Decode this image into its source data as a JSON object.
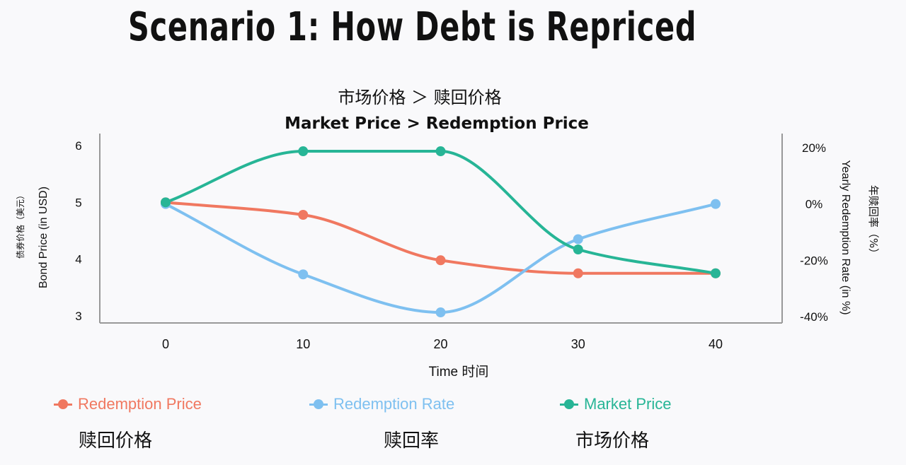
{
  "slide_title": "Scenario 1: How Debt is Repriced",
  "chart_data": {
    "type": "line",
    "title_cn": "市场价格 ＞ 赎回价格",
    "title": "Market Price > Redemption Price",
    "xlabel": "Time 时间",
    "ylabel_left": "Bond Price (in USD)",
    "ylabel_left_cn": "债券价格（美元）",
    "ylabel_right": "Yearly Redemption Rate (in %)",
    "ylabel_right_cn": "年赎回率（%）",
    "x": [
      0,
      10,
      20,
      30,
      40
    ],
    "x_ticks": [
      "0",
      "10",
      "20",
      "30",
      "40"
    ],
    "y_left_ticks": [
      "6",
      "5",
      "4",
      "3"
    ],
    "y_left_lim": [
      3,
      6
    ],
    "y_right_ticks": [
      "20%",
      "0%",
      "-20%",
      "-40%"
    ],
    "y_right_lim": [
      -40,
      20
    ],
    "grid": false,
    "legend_position": "bottom",
    "series": [
      {
        "name": "Redemption Price",
        "axis": "left",
        "color": "#f07860",
        "values": [
          5.0,
          4.78,
          3.98,
          3.75,
          3.75
        ]
      },
      {
        "name": "Redemption Rate",
        "axis": "right",
        "color": "#7ec0f0",
        "values": [
          0,
          -25,
          -38.5,
          -12.5,
          0
        ]
      },
      {
        "name": "Market Price",
        "axis": "left",
        "color": "#27b596",
        "values": [
          5.0,
          5.9,
          5.9,
          4.17,
          3.75
        ]
      }
    ]
  },
  "legend_cn": [
    "赎回价格",
    "赎回率",
    "市场价格"
  ]
}
